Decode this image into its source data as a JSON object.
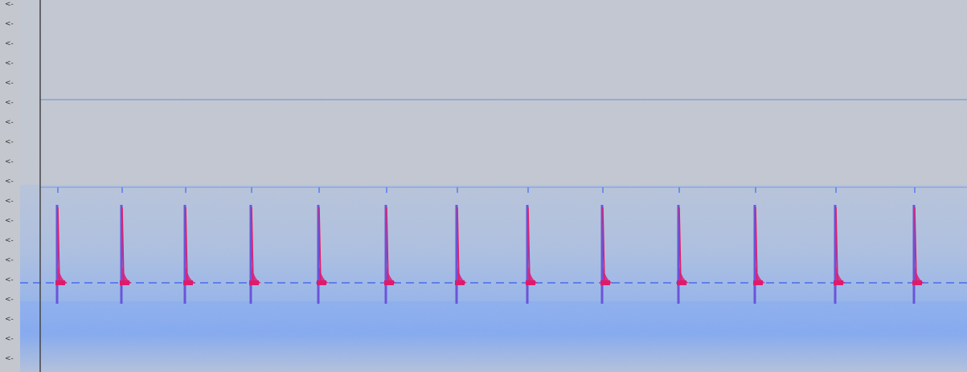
{
  "axis_markers": [
    "<-",
    "<-",
    "<-",
    "<-",
    "<-",
    "<-",
    "<-",
    "<-",
    "<-",
    "<-",
    "<-",
    "<-",
    "<-",
    "<-",
    "<-",
    "<-",
    "<-",
    "<-",
    "<-"
  ]
}
